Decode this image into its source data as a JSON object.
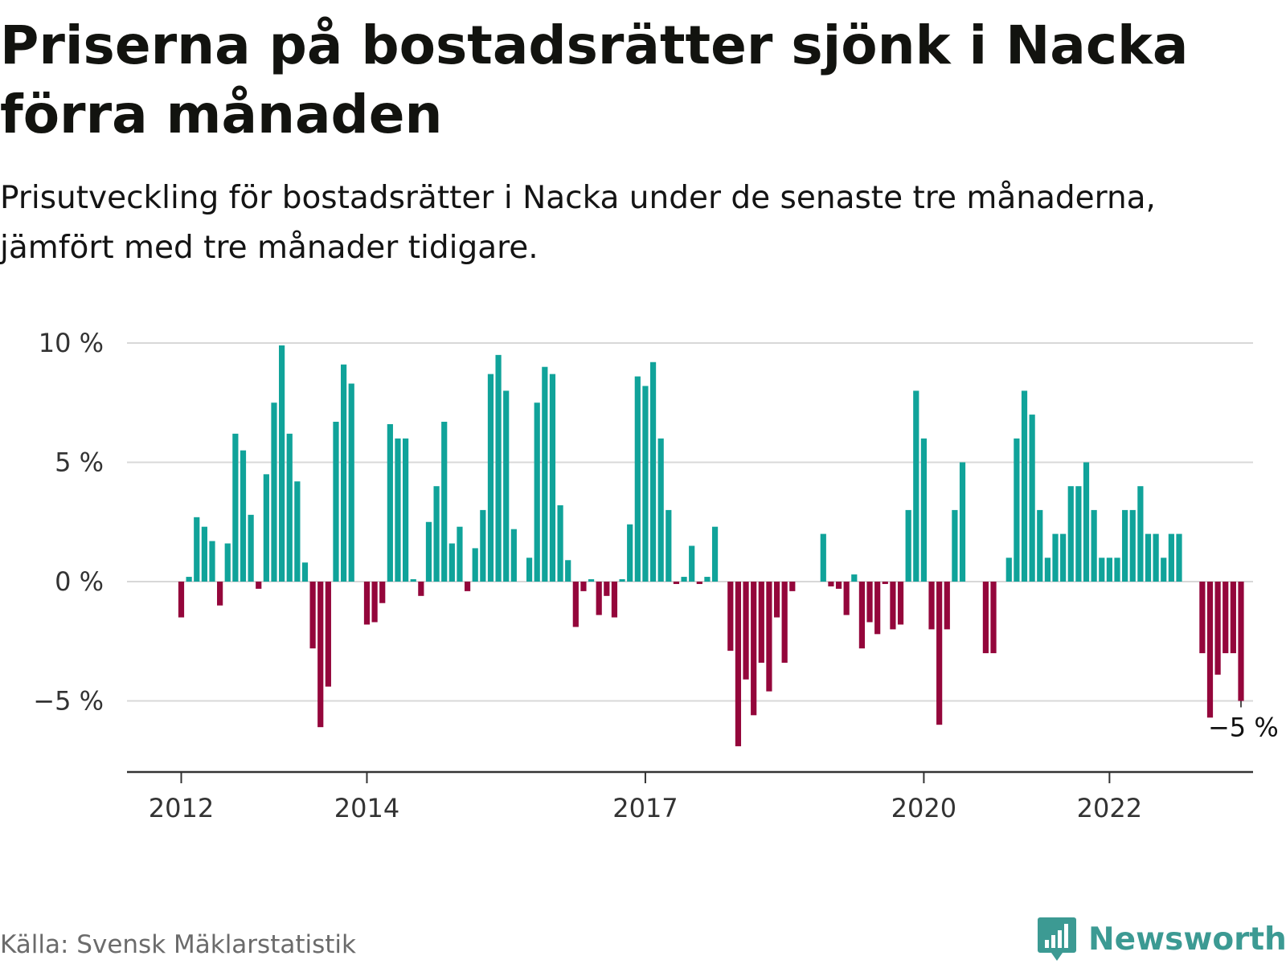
{
  "header": {
    "title": "Priserna på bostadsrätter sjönk i Nacka förra månaden",
    "subtitle": "Prisutveckling för bostadsrätter i Nacka under de senaste tre månaderna, jämfört med tre månader tidigare."
  },
  "footer": {
    "source": "Källa: Svensk Mäklarstatistik",
    "brand": "Newsworthy",
    "brand_icon": "speech-bubble-bar-chart-icon"
  },
  "colors": {
    "positive": "#10a39a",
    "negative": "#94063b",
    "grid": "#d8d8d8",
    "axis": "#333333",
    "brand": "#3c9a93"
  },
  "chart_data": {
    "type": "bar",
    "title": "Priserna på bostadsrätter sjönk i Nacka förra månaden",
    "subtitle": "Prisutveckling för bostadsrätter i Nacka under de senaste tre månaderna, jämfört med tre månader tidigare.",
    "unit": "%",
    "x_start": "2012-01",
    "x_interval": "month",
    "x_ticks": [
      "2012",
      "2014",
      "2017",
      "2020",
      "2022"
    ],
    "y_ticks": [
      10,
      5,
      0,
      -5
    ],
    "y_tick_labels": [
      "10 %",
      "5 %",
      "0 %",
      "−5 %"
    ],
    "ylim": [
      -8,
      10
    ],
    "grid": true,
    "annotation": {
      "label": "−5 %",
      "value": -5
    },
    "values": [
      -1.5,
      0.2,
      2.7,
      2.3,
      1.7,
      -1.0,
      1.6,
      6.2,
      5.5,
      2.8,
      -0.3,
      4.5,
      7.5,
      9.9,
      6.2,
      4.2,
      0.8,
      -2.8,
      -6.1,
      -4.4,
      6.7,
      9.1,
      8.3,
      0.0,
      -1.8,
      -1.7,
      -0.9,
      6.6,
      6.0,
      6.0,
      0.1,
      -0.6,
      2.5,
      4.0,
      6.7,
      1.6,
      2.3,
      -0.4,
      1.4,
      3.0,
      8.7,
      9.5,
      8.0,
      2.2,
      0.0,
      1.0,
      7.5,
      9.0,
      8.7,
      3.2,
      0.9,
      -1.9,
      -0.4,
      0.1,
      -1.4,
      -0.6,
      -1.5,
      0.1,
      2.4,
      8.6,
      8.2,
      9.2,
      6.0,
      3.0,
      -0.1,
      0.2,
      1.5,
      -0.1,
      0.2,
      2.3,
      0.0,
      -2.9,
      -6.9,
      -4.1,
      -5.6,
      -3.4,
      -4.6,
      -1.5,
      -3.4,
      -0.4,
      0.0,
      0.0,
      0.0,
      2.0,
      -0.2,
      -0.3,
      -1.4,
      0.3,
      -2.8,
      -1.7,
      -2.2,
      -0.1,
      -2.0,
      -1.8,
      3.0,
      8.0,
      6.0,
      -2.0,
      -6.0,
      -2.0,
      3.0,
      5.0,
      0.0,
      0.0,
      -3.0,
      -3.0,
      0.0,
      1.0,
      6.0,
      8.0,
      7.0,
      3.0,
      1.0,
      2.0,
      2.0,
      4.0,
      4.0,
      5.0,
      3.0,
      1.0,
      1.0,
      1.0,
      3.0,
      3.0,
      4.0,
      2.0,
      2.0,
      1.0,
      2.0,
      2.0,
      0.0,
      0.0,
      -3.0,
      -5.7,
      -3.9,
      -3.0,
      -3.0,
      -5.0
    ]
  }
}
